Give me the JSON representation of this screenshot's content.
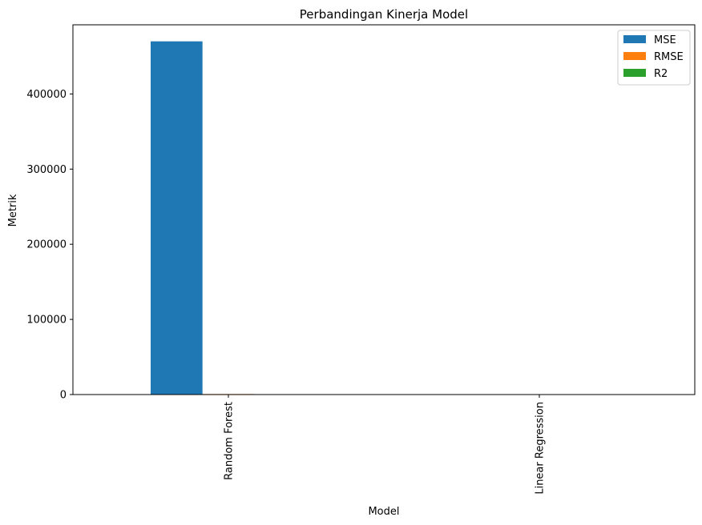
{
  "chart_data": {
    "type": "bar",
    "title": "Perbandingan Kinerja Model",
    "xlabel": "Model",
    "ylabel": "Metrik",
    "categories": [
      "Random Forest",
      "Linear Regression"
    ],
    "series": [
      {
        "name": "MSE",
        "values": [
          470000,
          120
        ],
        "color": "#1f77b4"
      },
      {
        "name": "RMSE",
        "values": [
          685,
          11
        ],
        "color": "#ff7f0e"
      },
      {
        "name": "R2",
        "values": [
          0.9,
          0.999
        ],
        "color": "#2ca02c"
      }
    ],
    "ylim": [
      0,
      492000
    ],
    "yticks": [
      0,
      100000,
      200000,
      300000,
      400000
    ],
    "ytick_labels": [
      "0",
      "100000",
      "200000",
      "300000",
      "400000"
    ],
    "grid": false,
    "legend_position": "top-right",
    "xtick_rotation": "vertical"
  }
}
